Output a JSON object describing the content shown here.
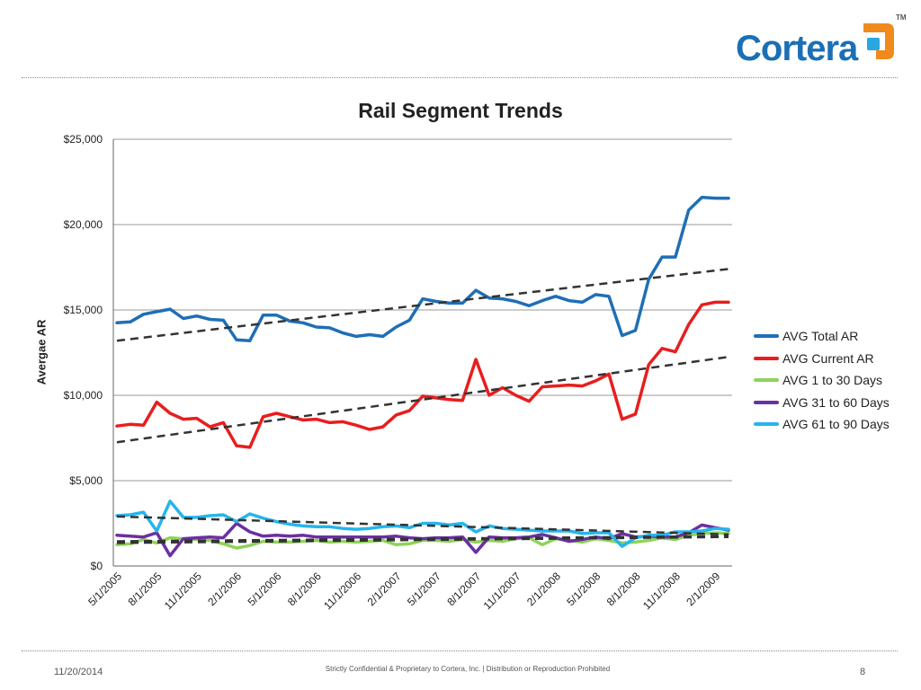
{
  "brand": {
    "name": "Cortera",
    "tm": "TM",
    "colors": {
      "blue": "#1b6fb5",
      "orange": "#f08a1c",
      "cyan": "#29a8e0"
    }
  },
  "footer": {
    "date": "11/20/2014",
    "confidential": "Strictly Confidential & Proprietary to Cortera, Inc. |  Distribution or Reproduction Prohibited",
    "page": "8"
  },
  "chart_data": {
    "type": "line",
    "title": "Rail Segment Trends",
    "xlabel": "",
    "ylabel": "Avergae AR",
    "ylim": [
      0,
      25000
    ],
    "yticks": [
      {
        "value": 0,
        "label": "$0"
      },
      {
        "value": 5000,
        "label": "$5,000"
      },
      {
        "value": 10000,
        "label": "$10,000"
      },
      {
        "value": 15000,
        "label": "$15,000"
      },
      {
        "value": 20000,
        "label": "$20,000"
      },
      {
        "value": 25000,
        "label": "$25,000"
      }
    ],
    "x_count": 47,
    "xticks": [
      {
        "index": 0,
        "label": "5/1/2005"
      },
      {
        "index": 3,
        "label": "8/1/2005"
      },
      {
        "index": 6,
        "label": "11/1/2005"
      },
      {
        "index": 9,
        "label": "2/1/2006"
      },
      {
        "index": 12,
        "label": "5/1/2006"
      },
      {
        "index": 15,
        "label": "8/1/2006"
      },
      {
        "index": 18,
        "label": "11/1/2006"
      },
      {
        "index": 21,
        "label": "2/1/2007"
      },
      {
        "index": 24,
        "label": "5/1/2007"
      },
      {
        "index": 27,
        "label": "8/1/2007"
      },
      {
        "index": 30,
        "label": "11/1/2007"
      },
      {
        "index": 33,
        "label": "2/1/2008"
      },
      {
        "index": 36,
        "label": "5/1/2008"
      },
      {
        "index": 39,
        "label": "8/1/2008"
      },
      {
        "index": 42,
        "label": "11/1/2008"
      },
      {
        "index": 45,
        "label": "2/1/2009"
      }
    ],
    "grid": "horizontal",
    "legend_position": "right",
    "series": [
      {
        "name": "AVG Total AR",
        "color": "#1f6fb5",
        "values": [
          14250,
          14300,
          14750,
          14900,
          15050,
          14500,
          14650,
          14450,
          14400,
          13250,
          13200,
          14700,
          14700,
          14350,
          14250,
          14000,
          13950,
          13650,
          13450,
          13550,
          13450,
          14000,
          14400,
          15650,
          15500,
          15400,
          15400,
          16150,
          15700,
          15650,
          15500,
          15250,
          15550,
          15800,
          15550,
          15450,
          15900,
          15800,
          13500,
          13800,
          16800,
          18100,
          18100,
          20850,
          21600,
          21550,
          21550
        ]
      },
      {
        "name": "AVG Current AR",
        "color": "#e81e1e",
        "values": [
          8200,
          8300,
          8250,
          9600,
          8950,
          8600,
          8650,
          8150,
          8400,
          7050,
          6950,
          8750,
          8950,
          8750,
          8550,
          8600,
          8400,
          8450,
          8250,
          8000,
          8150,
          8850,
          9100,
          9950,
          9850,
          9750,
          9700,
          12100,
          10000,
          10450,
          10000,
          9650,
          10500,
          10550,
          10600,
          10550,
          10850,
          11250,
          8600,
          8900,
          11800,
          12750,
          12550,
          14150,
          15300,
          15450,
          15450
        ]
      },
      {
        "name": "AVG 1 to 30 Days",
        "color": "#8fd25a",
        "values": [
          1250,
          1300,
          1550,
          1350,
          1650,
          1600,
          1550,
          1500,
          1300,
          1050,
          1200,
          1450,
          1400,
          1400,
          1450,
          1500,
          1400,
          1450,
          1400,
          1450,
          1500,
          1250,
          1300,
          1500,
          1500,
          1450,
          1550,
          1400,
          1500,
          1450,
          1600,
          1650,
          1250,
          1600,
          1500,
          1400,
          1600,
          1500,
          1350,
          1400,
          1500,
          1650,
          1550,
          1800,
          1900,
          1950,
          1900
        ]
      },
      {
        "name": "AVG 31 to 60 Days",
        "color": "#6a30a0",
        "values": [
          1800,
          1750,
          1700,
          1950,
          600,
          1600,
          1650,
          1700,
          1650,
          2500,
          2000,
          1750,
          1800,
          1750,
          1800,
          1700,
          1700,
          1700,
          1700,
          1700,
          1700,
          1750,
          1650,
          1600,
          1650,
          1650,
          1700,
          800,
          1700,
          1650,
          1650,
          1700,
          1850,
          1650,
          1450,
          1550,
          1700,
          1600,
          1900,
          1700,
          1750,
          1700,
          1700,
          1950,
          2400,
          2250,
          2100
        ]
      },
      {
        "name": "AVG 61 to 90 Days",
        "color": "#25b5ec",
        "values": [
          2950,
          3000,
          3150,
          2050,
          3800,
          2850,
          2850,
          2950,
          3000,
          2600,
          3050,
          2800,
          2600,
          2450,
          2350,
          2300,
          2300,
          2200,
          2150,
          2200,
          2300,
          2350,
          2250,
          2500,
          2500,
          2400,
          2500,
          2000,
          2350,
          2200,
          2150,
          2100,
          2050,
          2050,
          2050,
          1900,
          1950,
          1950,
          1150,
          1650,
          1800,
          1800,
          2000,
          2000,
          2050,
          2200,
          2150
        ]
      }
    ],
    "trendlines": [
      {
        "series": "AVG Total AR",
        "start": 13200,
        "end": 17400,
        "style": "dashed"
      },
      {
        "series": "AVG Current AR",
        "start": 7250,
        "end": 12250,
        "style": "dashed"
      },
      {
        "series": "AVG 61 to 90 Days",
        "start": 2900,
        "end": 1850,
        "style": "dashed"
      },
      {
        "series": "AVG 31 to 60 Days",
        "start": 1450,
        "end": 1750,
        "style": "dashed"
      },
      {
        "series": "AVG 1 to 30 Days",
        "start": 1350,
        "end": 1700,
        "style": "dashed"
      }
    ]
  }
}
